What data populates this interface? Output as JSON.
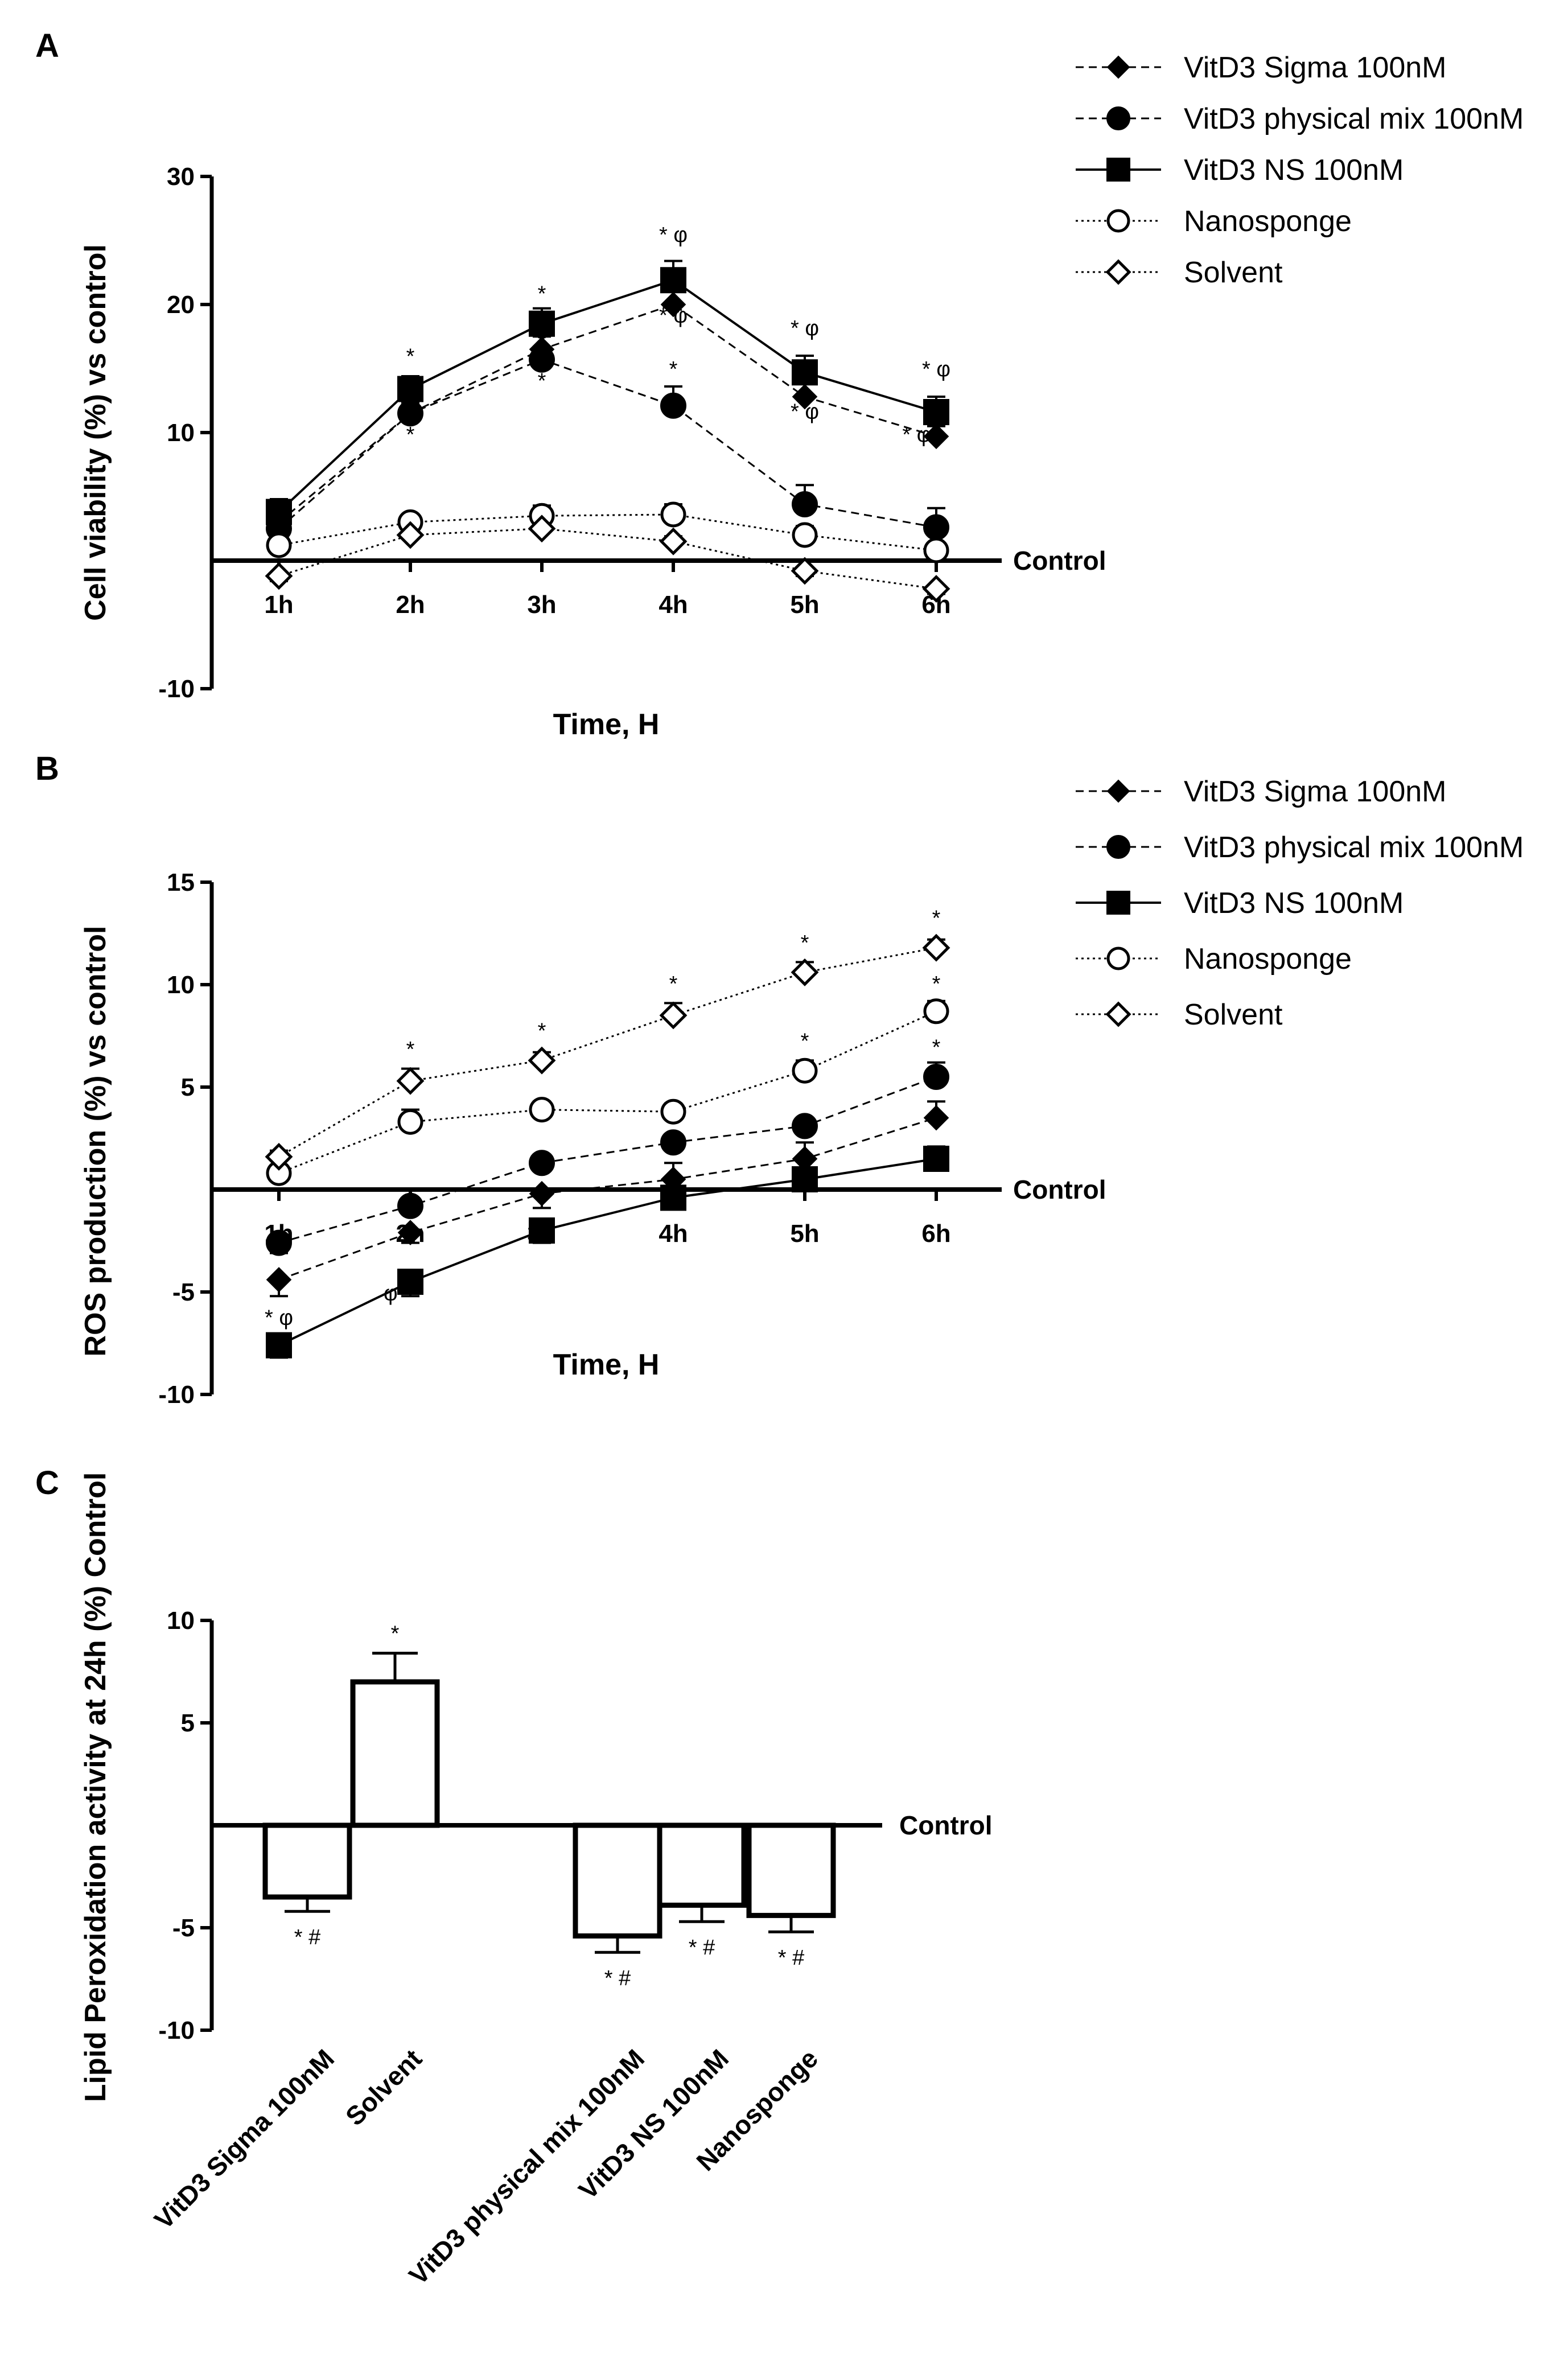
{
  "panels": {
    "A": "A",
    "B": "B",
    "C": "C"
  },
  "colors": {
    "ink": "#000000",
    "paper": "#ffffff"
  },
  "chart_data": [
    {
      "id": "A",
      "type": "line",
      "title": "",
      "xlabel": "Time, H",
      "ylabel": "Cell viability (%) vs control",
      "baseline_label": "Control",
      "categories": [
        "1h",
        "2h",
        "3h",
        "4h",
        "5h",
        "6h"
      ],
      "ylim": [
        -10,
        30
      ],
      "yticks": [
        -10,
        10,
        20,
        30
      ],
      "series": [
        {
          "name": "VitD3 Sigma 100nM",
          "marker": "diamond-filled",
          "line": "dashed",
          "values": [
            3.0,
            11.5,
            16.5,
            20.0,
            12.8,
            9.7
          ],
          "errors": [
            1.0,
            0.8,
            1.0,
            1.1,
            1.0,
            0.8
          ]
        },
        {
          "name": "VitD3 physical mix 100nM",
          "marker": "circle-filled",
          "line": "dashed",
          "values": [
            2.5,
            11.5,
            15.7,
            12.1,
            4.4,
            2.6
          ],
          "errors": [
            1.3,
            1.0,
            1.0,
            1.5,
            1.5,
            1.5
          ]
        },
        {
          "name": "VitD3 NS 100nM",
          "marker": "square-filled",
          "line": "solid",
          "values": [
            3.8,
            13.4,
            18.5,
            21.9,
            14.7,
            11.6
          ],
          "errors": [
            1.0,
            1.0,
            1.2,
            1.5,
            1.3,
            1.2
          ]
        },
        {
          "name": "Nanosponge",
          "marker": "circle-open",
          "line": "dotted",
          "values": [
            1.2,
            3.0,
            3.5,
            3.6,
            2.0,
            0.8
          ],
          "errors": [
            0.6,
            0.6,
            0.8,
            0.8,
            0.7,
            0.6
          ]
        },
        {
          "name": "Solvent",
          "marker": "diamond-open",
          "line": "dotted",
          "values": [
            -1.2,
            2.0,
            2.5,
            1.5,
            -0.8,
            -2.2
          ],
          "errors": [
            0.4,
            0.4,
            0.4,
            0.4,
            0.4,
            0.4
          ]
        }
      ],
      "annotations": [
        {
          "x": "2h",
          "y": 15.4,
          "text": "*"
        },
        {
          "x": "2h",
          "y": 9.3,
          "text": "*"
        },
        {
          "x": "3h",
          "y": 20.3,
          "text": "*"
        },
        {
          "x": "3h",
          "y": 16.5,
          "text": "*"
        },
        {
          "x": "3h",
          "y": 13.5,
          "text": "*"
        },
        {
          "x": "4h",
          "y": 24.9,
          "text": "* φ"
        },
        {
          "x": "4h",
          "y": 18.6,
          "text": "* φ"
        },
        {
          "x": "4h",
          "y": 14.4,
          "text": "*"
        },
        {
          "x": "5h",
          "y": 17.6,
          "text": "* φ"
        },
        {
          "x": "5h",
          "y": 11.1,
          "text": "* φ"
        },
        {
          "x": "6h",
          "y": 14.4,
          "text": "* φ"
        },
        {
          "x": "5.85",
          "y": 9.3,
          "text": "* φ"
        }
      ]
    },
    {
      "id": "B",
      "type": "line",
      "title": "",
      "xlabel": "Time, H",
      "ylabel": "ROS production (%) vs control",
      "baseline_label": "Control",
      "categories": [
        "1h",
        "2h",
        "3h",
        "4h",
        "5h",
        "6h"
      ],
      "ylim": [
        -10,
        15
      ],
      "yticks": [
        -10,
        -5,
        5,
        10,
        15
      ],
      "series": [
        {
          "name": "VitD3 Sigma 100nM",
          "marker": "diamond-filled",
          "line": "dashed",
          "values": [
            -4.4,
            -2.1,
            -0.2,
            0.5,
            1.5,
            3.5
          ],
          "errors": [
            0.8,
            0.5,
            0.7,
            0.8,
            0.8,
            0.8
          ]
        },
        {
          "name": "VitD3 physical mix 100nM",
          "marker": "circle-filled",
          "line": "dashed",
          "values": [
            -2.6,
            -0.8,
            1.3,
            2.3,
            3.1,
            5.5
          ],
          "errors": [
            0.5,
            0.4,
            0.4,
            0.4,
            0.4,
            0.7
          ]
        },
        {
          "name": "VitD3 NS 100nM",
          "marker": "square-filled",
          "line": "solid",
          "values": [
            -7.6,
            -4.5,
            -2.0,
            -0.4,
            0.5,
            1.5
          ],
          "errors": [
            0.6,
            0.7,
            0.6,
            0.5,
            0.5,
            0.6
          ]
        },
        {
          "name": "Nanosponge",
          "marker": "circle-open",
          "line": "dotted",
          "values": [
            0.8,
            3.3,
            3.9,
            3.8,
            5.8,
            8.7
          ],
          "errors": [
            0.4,
            0.6,
            0.4,
            0.4,
            0.5,
            0.5
          ]
        },
        {
          "name": "Solvent",
          "marker": "diamond-open",
          "line": "dotted",
          "values": [
            1.6,
            5.3,
            6.3,
            8.5,
            10.6,
            11.8
          ],
          "errors": [
            0.3,
            0.6,
            0.4,
            0.6,
            0.5,
            0.4
          ]
        }
      ],
      "annotations": [
        {
          "x": "2h",
          "y": 6.5,
          "text": "*"
        },
        {
          "x": "3h",
          "y": 7.4,
          "text": "*"
        },
        {
          "x": "4h",
          "y": 9.7,
          "text": "*"
        },
        {
          "x": "5h",
          "y": 11.7,
          "text": "*"
        },
        {
          "x": "6h",
          "y": 12.9,
          "text": "*"
        },
        {
          "x": "5h",
          "y": 6.9,
          "text": "*"
        },
        {
          "x": "6h",
          "y": 9.7,
          "text": "*"
        },
        {
          "x": "6h",
          "y": 6.6,
          "text": "*"
        },
        {
          "x": "1h",
          "y": -6.6,
          "text": "* φ"
        },
        {
          "x": "1.85",
          "y": -5.4,
          "text": "φ"
        }
      ]
    },
    {
      "id": "C",
      "type": "bar",
      "title": "",
      "xlabel": "",
      "ylabel": "Lipid Peroxidation activity at 24h (%) Control",
      "baseline_label": "Control",
      "categories": [
        "VitD3 Sigma 100nM",
        "Solvent",
        "VitD3 physical mix 100nM",
        "VitD3 NS 100nM",
        "Nanosponge"
      ],
      "values": [
        -3.5,
        7.0,
        -5.4,
        -3.9,
        -4.4
      ],
      "errors": [
        0.7,
        1.4,
        0.8,
        0.8,
        0.8
      ],
      "annotations": [
        "* #",
        "*",
        "* #",
        "* #",
        "* #"
      ],
      "ylim": [
        -10,
        10
      ],
      "yticks": [
        -10,
        -5,
        5,
        10
      ]
    }
  ]
}
